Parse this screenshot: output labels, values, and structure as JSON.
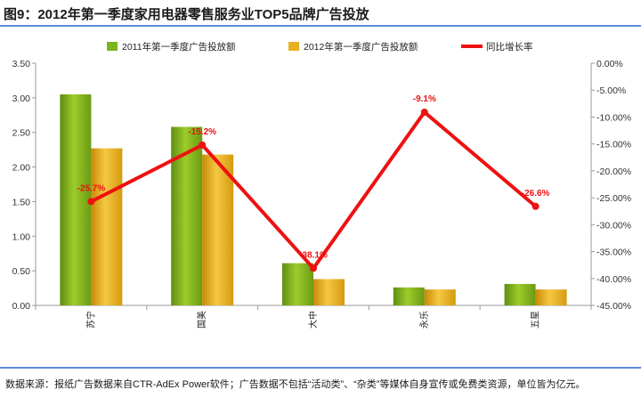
{
  "title": "图9：2012年第一季度家用电器零售服务业TOP5品牌广告投放",
  "note": "数据来源：报纸广告数据来自CTR-AdEx Power软件；广告数据不包括“活动类”、“杂类”等媒体自身宣传或免费类资源，单位皆为亿元。",
  "chart_data": {
    "type": "bar",
    "categories": [
      "苏宁",
      "国美",
      "大中",
      "永乐",
      "五星"
    ],
    "series": [
      {
        "name": "2011年第一季度广告投放额",
        "type": "bar",
        "axis": "left",
        "color": "#7ab51d",
        "values": [
          3.05,
          2.58,
          0.61,
          0.26,
          0.31
        ]
      },
      {
        "name": "2012年第一季度广告投放额",
        "type": "bar",
        "axis": "left",
        "color": "#e8b020",
        "values": [
          2.27,
          2.18,
          0.38,
          0.23,
          0.23
        ]
      },
      {
        "name": "同比增长率",
        "type": "line",
        "axis": "right",
        "color": "#ee1111",
        "values": [
          -25.7,
          -15.2,
          -38.1,
          -9.1,
          -26.6
        ],
        "labels": [
          "-25.7%",
          "-15.2%",
          "-38.1%",
          "-9.1%",
          "-26.6%"
        ]
      }
    ],
    "y_left": {
      "range": [
        0,
        3.5
      ],
      "ticks": [
        "0.00",
        "0.50",
        "1.00",
        "1.50",
        "2.00",
        "2.50",
        "3.00",
        "3.50"
      ]
    },
    "y_right": {
      "range": [
        -45,
        0
      ],
      "ticks": [
        "0.00%",
        "-5.00%",
        "-10.00%",
        "-15.00%",
        "-20.00%",
        "-25.00%",
        "-30.00%",
        "-35.00%",
        "-40.00%",
        "-45.00%"
      ]
    },
    "grid": false,
    "legend": "top"
  }
}
